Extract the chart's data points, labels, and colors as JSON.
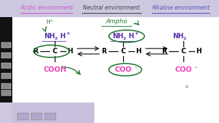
{
  "bg_color": "#cdc8e0",
  "white_bg": "#ffffff",
  "title_acidic": "Acidic environment",
  "title_neutral": "Neutral environment",
  "title_alkaline": "Alkaline environment",
  "acidic_color": "#cc55cc",
  "neutral_color": "#444444",
  "alkaline_color": "#5555bb",
  "green_color": "#227733",
  "pink_color": "#ee44bb",
  "dark_purple": "#5533aa",
  "fig_w": 3.2,
  "fig_h": 1.8,
  "dpi": 100
}
